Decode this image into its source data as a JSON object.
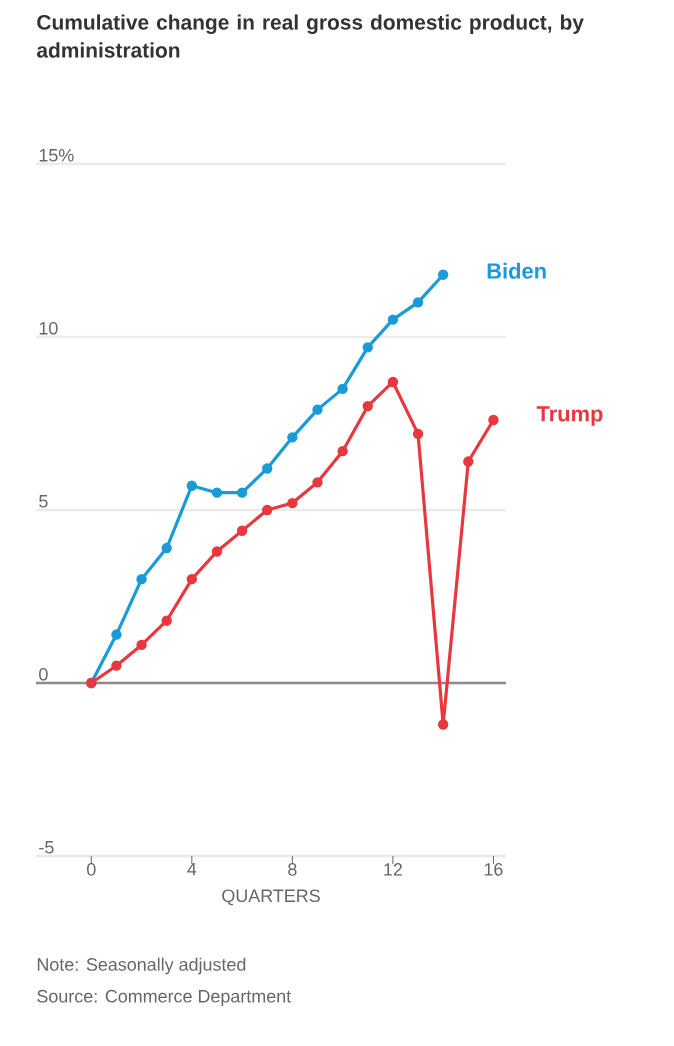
{
  "chart_data": {
    "type": "line",
    "title": "Cumulative change in real gross domestic product, by administration",
    "xlabel": "QUARTERS",
    "series": [
      {
        "name": "Biden",
        "color": "#1a9bd7",
        "x": [
          0,
          1,
          2,
          3,
          4,
          5,
          6,
          7,
          8,
          9,
          10,
          11,
          12,
          13,
          14
        ],
        "values": [
          0,
          1.4,
          3.0,
          3.9,
          5.7,
          5.5,
          5.5,
          6.2,
          7.1,
          7.9,
          8.5,
          9.7,
          10.5,
          11.0,
          11.8
        ]
      },
      {
        "name": "Trump",
        "color": "#e8383f",
        "x": [
          0,
          1,
          2,
          3,
          4,
          5,
          6,
          7,
          8,
          9,
          10,
          11,
          12,
          13,
          14,
          15,
          16
        ],
        "values": [
          0,
          0.5,
          1.1,
          1.8,
          3.0,
          3.8,
          4.4,
          5.0,
          5.2,
          5.8,
          6.7,
          8.0,
          8.7,
          7.2,
          -1.2,
          6.4,
          7.6
        ]
      }
    ],
    "xlim": [
      -2.2,
      16.5
    ],
    "ylim": [
      -5,
      15
    ],
    "xticks": [
      0,
      4,
      8,
      12,
      16
    ],
    "yticks": [
      -5,
      0,
      5,
      10,
      {
        "value": 15,
        "label": "15%"
      }
    ],
    "grid": "y",
    "marker": "circle",
    "annotations": [
      "Note: Seasonally adjusted",
      "Source: Commerce Department"
    ]
  }
}
